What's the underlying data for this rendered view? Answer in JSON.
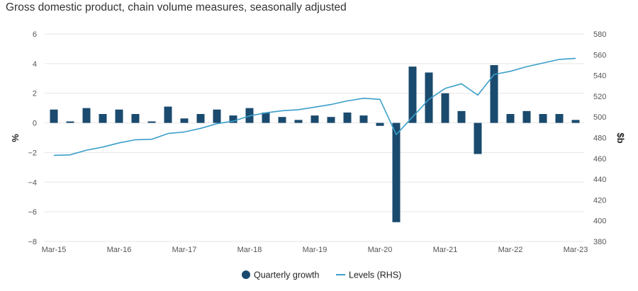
{
  "chart_data": {
    "type": "bar",
    "title": "Gross domestic product, chain volume measures, seasonally adjusted",
    "x_tick_labels": [
      "Mar-15",
      "Mar-16",
      "Mar-17",
      "Mar-18",
      "Mar-19",
      "Mar-20",
      "Mar-21",
      "Mar-22",
      "Mar-23"
    ],
    "y_left": {
      "label": "%",
      "range": [
        -8,
        6
      ],
      "ticks": [
        6,
        4,
        2,
        0,
        -2,
        -4,
        -6,
        -8
      ],
      "tick_labels": [
        "6",
        "4",
        "2",
        "0",
        "−2",
        "−4",
        "−6",
        "−8"
      ]
    },
    "y_right": {
      "label": "$b",
      "range": [
        380,
        580
      ],
      "ticks": [
        580,
        560,
        540,
        520,
        500,
        480,
        460,
        440,
        420,
        400,
        380
      ],
      "tick_labels": [
        "580",
        "560",
        "540",
        "520",
        "500",
        "480",
        "460",
        "440",
        "420",
        "400",
        "380"
      ]
    },
    "grid": true,
    "legend_position": "bottom",
    "categories": [
      "Mar-15",
      "Jun-15",
      "Sep-15",
      "Dec-15",
      "Mar-16",
      "Jun-16",
      "Sep-16",
      "Dec-16",
      "Mar-17",
      "Jun-17",
      "Sep-17",
      "Dec-17",
      "Mar-18",
      "Jun-18",
      "Sep-18",
      "Dec-18",
      "Mar-19",
      "Jun-19",
      "Sep-19",
      "Dec-19",
      "Mar-20",
      "Jun-20",
      "Sep-20",
      "Dec-20",
      "Mar-21",
      "Jun-21",
      "Sep-21",
      "Dec-21",
      "Mar-22",
      "Jun-22",
      "Sep-22",
      "Dec-22",
      "Mar-23"
    ],
    "series": [
      {
        "name": "Quarterly growth",
        "type": "bar",
        "axis": "left",
        "color": "#1a4a6e",
        "values": [
          0.9,
          0.1,
          1.0,
          0.6,
          0.9,
          0.6,
          0.1,
          1.1,
          0.3,
          0.6,
          0.9,
          0.5,
          1.0,
          0.7,
          0.4,
          0.2,
          0.5,
          0.4,
          0.7,
          0.5,
          -0.2,
          -6.7,
          3.8,
          3.4,
          2.0,
          0.8,
          -2.1,
          3.9,
          0.6,
          0.8,
          0.6,
          0.6,
          0.2
        ]
      },
      {
        "name": "Levels (RHS)",
        "type": "line",
        "axis": "right",
        "color": "#3a9fc9",
        "values": [
          463,
          463.5,
          468,
          471,
          475,
          478,
          478.5,
          484,
          485.5,
          489,
          493.5,
          496,
          501,
          504,
          506,
          507,
          509.5,
          512,
          515.5,
          518,
          517,
          483,
          500,
          517,
          527.5,
          532,
          521,
          541,
          544,
          548.5,
          552,
          555.5,
          556.5
        ]
      }
    ]
  }
}
